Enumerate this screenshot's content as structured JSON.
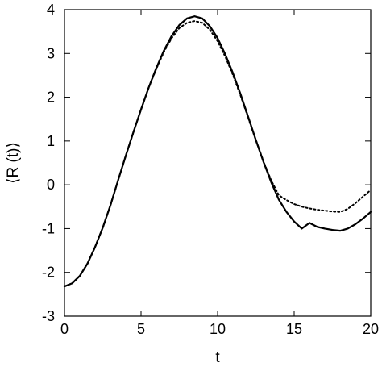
{
  "chart_data": {
    "type": "line",
    "title": "",
    "xlabel": "t",
    "ylabel": "⟨R (t)⟩",
    "xlim": [
      0,
      20
    ],
    "ylim": [
      -3,
      4
    ],
    "xticks": [
      0,
      5,
      10,
      15,
      20
    ],
    "yticks": [
      -3,
      -2,
      -1,
      0,
      1,
      2,
      3,
      4
    ],
    "grid": false,
    "legend": "none",
    "series": [
      {
        "style": "solid",
        "color": "#000000",
        "x": [
          0,
          0.5,
          1,
          1.5,
          2,
          2.5,
          3,
          3.5,
          4,
          4.5,
          5,
          5.5,
          6,
          6.5,
          7,
          7.5,
          8,
          8.5,
          9,
          9.5,
          10,
          10.5,
          11,
          11.5,
          12,
          12.5,
          13,
          13.5,
          14,
          14.5,
          15,
          15.5,
          16,
          16.5,
          17,
          17.5,
          18,
          18.5,
          19,
          19.5,
          20
        ],
        "y": [
          -2.32,
          -2.25,
          -2.08,
          -1.8,
          -1.42,
          -0.98,
          -0.47,
          0.1,
          0.66,
          1.2,
          1.72,
          2.22,
          2.67,
          3.07,
          3.4,
          3.65,
          3.8,
          3.85,
          3.8,
          3.62,
          3.35,
          2.98,
          2.55,
          2.07,
          1.55,
          1.02,
          0.52,
          0.06,
          -0.34,
          -0.62,
          -0.84,
          -1.0,
          -0.87,
          -0.96,
          -1.0,
          -1.03,
          -1.05,
          -1.0,
          -0.9,
          -0.77,
          -0.62
        ]
      },
      {
        "style": "dotted",
        "color": "#000000",
        "x": [
          0,
          0.5,
          1,
          1.5,
          2,
          2.5,
          3,
          3.5,
          4,
          4.5,
          5,
          5.5,
          6,
          6.5,
          7,
          7.5,
          8,
          8.5,
          9,
          9.5,
          10,
          10.5,
          11,
          11.5,
          12,
          12.5,
          13,
          13.5,
          14,
          14.5,
          15,
          15.5,
          16,
          16.5,
          17,
          17.5,
          18,
          18.5,
          19,
          19.5,
          20
        ],
        "y": [
          -2.32,
          -2.25,
          -2.08,
          -1.8,
          -1.42,
          -0.98,
          -0.47,
          0.1,
          0.66,
          1.2,
          1.72,
          2.22,
          2.65,
          3.04,
          3.35,
          3.58,
          3.7,
          3.74,
          3.7,
          3.54,
          3.28,
          2.93,
          2.51,
          2.04,
          1.53,
          1.02,
          0.53,
          0.1,
          -0.24,
          -0.35,
          -0.44,
          -0.5,
          -0.54,
          -0.57,
          -0.59,
          -0.61,
          -0.62,
          -0.55,
          -0.42,
          -0.27,
          -0.12
        ]
      }
    ]
  }
}
